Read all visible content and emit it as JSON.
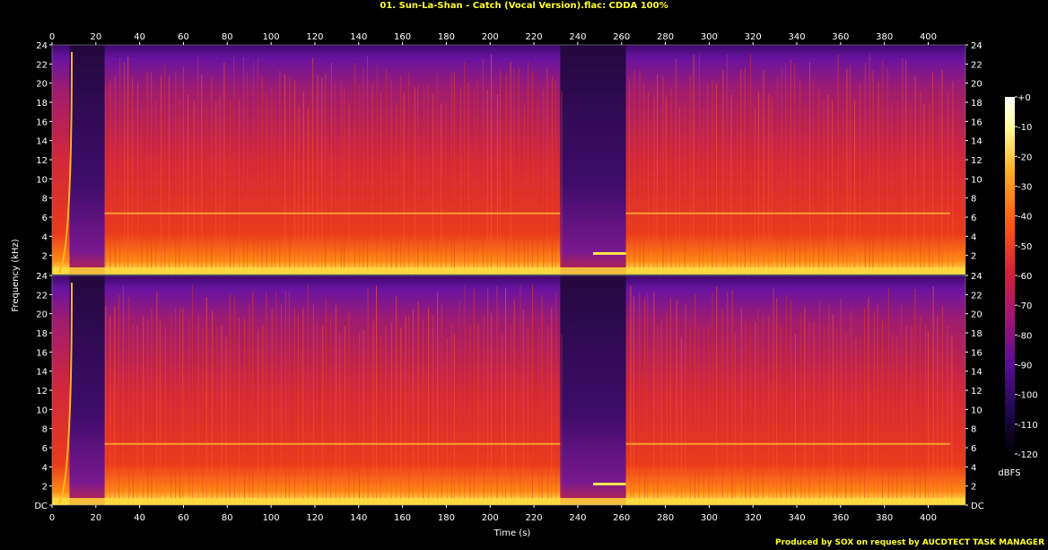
{
  "title": "01. Sun-La-Shan - Catch (Vocal Version).flac: CDDA 100%",
  "credit": "Produced by SOX on request by AUCDTECT TASK MANAGER",
  "chart_data": {
    "type": "heatmap",
    "xlabel": "Time (s)",
    "ylabel": "Frequency (kHz)",
    "x_ticks": [
      0,
      20,
      40,
      60,
      80,
      100,
      120,
      140,
      160,
      180,
      200,
      220,
      240,
      260,
      280,
      300,
      320,
      340,
      360,
      380,
      400
    ],
    "xlim": [
      0,
      417
    ],
    "ylim": [
      0,
      24
    ],
    "channels": [
      {
        "y_tick_labels": [
          "24",
          "22",
          "20",
          "18",
          "16",
          "14",
          "12",
          "10",
          "8",
          "6",
          "4",
          "2"
        ]
      },
      {
        "y_tick_labels": [
          "24",
          "22",
          "20",
          "18",
          "16",
          "14",
          "12",
          "10",
          "8",
          "6",
          "4",
          "2",
          "DC"
        ]
      }
    ],
    "colorbar": {
      "label": "dBFS",
      "range": [
        -120,
        0
      ],
      "ticks": [
        "+0",
        "-10",
        "-20",
        "-30",
        "-40",
        "-50",
        "-60",
        "-70",
        "-80",
        "-90",
        "-100",
        "-110",
        "-120"
      ]
    },
    "features": {
      "quiet_segments_s": [
        [
          8,
          24
        ],
        [
          232,
          262
        ]
      ],
      "tone_in_quiet_khz": 2.2,
      "persistent_line_khz": 6.4
    }
  },
  "colors": {
    "title": "#ffff28",
    "background": "#000000",
    "label": "#ffffff"
  }
}
